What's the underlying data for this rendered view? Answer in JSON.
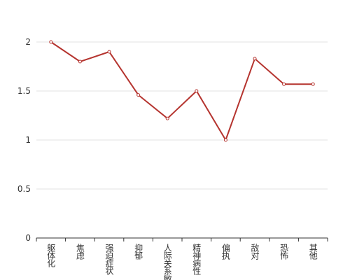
{
  "chart_data": {
    "type": "line",
    "categories": [
      "躯体化",
      "焦虑",
      "强迫症状",
      "抑郁",
      "人际关系敏感",
      "精神病性",
      "偏执",
      "敌对",
      "恐怖",
      "其他"
    ],
    "series": [
      {
        "color": "#b5342f",
        "values": [
          2,
          1.8,
          1.9,
          1.46,
          1.22,
          1.5,
          1.0,
          1.83,
          1.57,
          1.57
        ]
      }
    ],
    "ylim": [
      0,
      2
    ],
    "yticks": [
      0,
      0.5,
      1,
      1.5,
      2
    ],
    "grid": true
  }
}
